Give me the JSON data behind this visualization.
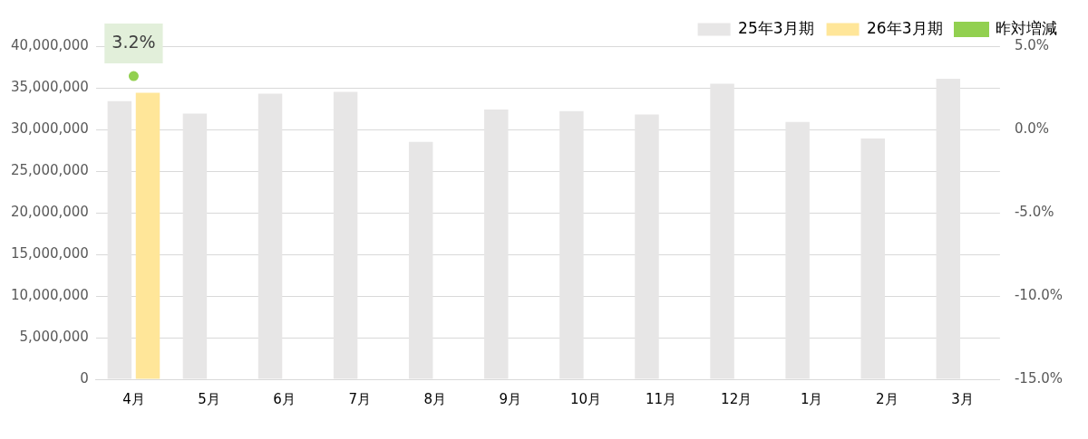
{
  "chart_data": {
    "type": "bar",
    "categories": [
      "4月",
      "5月",
      "6月",
      "7月",
      "8月",
      "9月",
      "10月",
      "11月",
      "12月",
      "1月",
      "2月",
      "3月"
    ],
    "series": [
      {
        "name": "25年3月期",
        "color": "#e7e6e6",
        "values": [
          33400000,
          31900000,
          34300000,
          34500000,
          28500000,
          32400000,
          32200000,
          31800000,
          35500000,
          30900000,
          28900000,
          36100000
        ]
      },
      {
        "name": "26年3月期",
        "color": "#ffe699",
        "values": [
          34400000,
          null,
          null,
          null,
          null,
          null,
          null,
          null,
          null,
          null,
          null,
          null
        ]
      },
      {
        "name": "昨対増減",
        "type": "line",
        "axis": "y2",
        "color": "#92d050",
        "marker": "circle",
        "values": [
          3.2,
          null,
          null,
          null,
          null,
          null,
          null,
          null,
          null,
          null,
          null,
          null
        ],
        "value_labels": [
          "3.2%",
          null,
          null,
          null,
          null,
          null,
          null,
          null,
          null,
          null,
          null,
          null
        ]
      }
    ],
    "ylim": [
      0,
      40000000
    ],
    "yticks": [
      {
        "value": 0,
        "label": "0"
      },
      {
        "value": 5000000,
        "label": "5,000,000"
      },
      {
        "value": 10000000,
        "label": "10,000,000"
      },
      {
        "value": 15000000,
        "label": "15,000,000"
      },
      {
        "value": 20000000,
        "label": "20,000,000"
      },
      {
        "value": 25000000,
        "label": "25,000,000"
      },
      {
        "value": 30000000,
        "label": "30,000,000"
      },
      {
        "value": 35000000,
        "label": "35,000,000"
      },
      {
        "value": 40000000,
        "label": "40,000,000"
      }
    ],
    "y2lim": [
      -15,
      5
    ],
    "y2ticks": [
      {
        "value": -15,
        "label": "-15.0%"
      },
      {
        "value": -10,
        "label": "-10.0%"
      },
      {
        "value": -5,
        "label": "-5.0%"
      },
      {
        "value": 0,
        "label": "0.0%"
      },
      {
        "value": 5,
        "label": "5.0%"
      }
    ],
    "grid": "y",
    "legend": "top right"
  }
}
